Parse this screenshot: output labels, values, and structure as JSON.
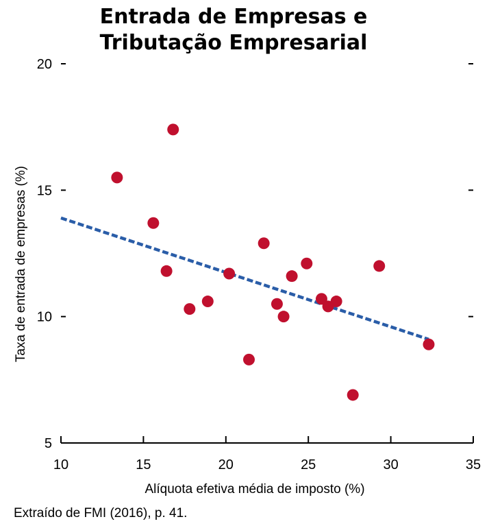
{
  "chart_data": {
    "type": "scatter",
    "title": [
      "Entrada de Empresas e",
      "Tributação Empresarial"
    ],
    "xlabel": "Alíquota efetiva média de imposto (%)",
    "ylabel": "Taxa de entrada de empresas (%)",
    "xlim": [
      10,
      35
    ],
    "ylim": [
      5,
      20
    ],
    "xticks": [
      10,
      15,
      20,
      25,
      30,
      35
    ],
    "yticks": [
      5,
      10,
      15,
      20
    ],
    "grid": false,
    "point_color": "#c0102e",
    "trend_color": "#2a5da8",
    "points": [
      {
        "x": 13.4,
        "y": 15.5
      },
      {
        "x": 15.6,
        "y": 13.7
      },
      {
        "x": 16.4,
        "y": 11.8
      },
      {
        "x": 16.8,
        "y": 17.4
      },
      {
        "x": 17.8,
        "y": 10.3
      },
      {
        "x": 18.9,
        "y": 10.6
      },
      {
        "x": 20.2,
        "y": 11.7
      },
      {
        "x": 21.4,
        "y": 8.3
      },
      {
        "x": 22.3,
        "y": 12.9
      },
      {
        "x": 23.1,
        "y": 10.5
      },
      {
        "x": 23.5,
        "y": 10.0
      },
      {
        "x": 24.0,
        "y": 11.6
      },
      {
        "x": 24.9,
        "y": 12.1
      },
      {
        "x": 25.8,
        "y": 10.7
      },
      {
        "x": 26.2,
        "y": 10.4
      },
      {
        "x": 26.7,
        "y": 10.6
      },
      {
        "x": 27.7,
        "y": 6.9
      },
      {
        "x": 29.3,
        "y": 12.0
      },
      {
        "x": 32.3,
        "y": 8.9
      }
    ],
    "trendline": {
      "x": [
        10,
        32.3
      ],
      "y": [
        13.9,
        9.1
      ]
    }
  },
  "source_note": "Extraído de FMI (2016), p. 41."
}
